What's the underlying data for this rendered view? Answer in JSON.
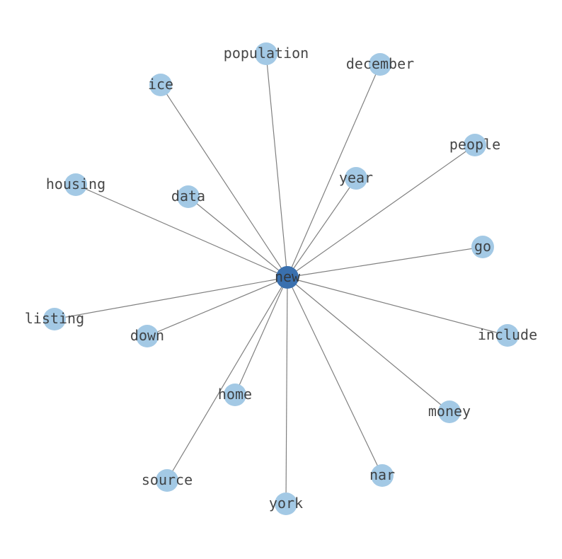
{
  "graph": {
    "center": "new",
    "nodes": [
      "new",
      "population",
      "december",
      "ice",
      "people",
      "year",
      "housing",
      "data",
      "go",
      "listing",
      "down",
      "include",
      "home",
      "money",
      "source",
      "nar",
      "york"
    ],
    "edges": [
      [
        "new",
        "population"
      ],
      [
        "new",
        "december"
      ],
      [
        "new",
        "ice"
      ],
      [
        "new",
        "people"
      ],
      [
        "new",
        "year"
      ],
      [
        "new",
        "housing"
      ],
      [
        "new",
        "data"
      ],
      [
        "new",
        "go"
      ],
      [
        "new",
        "listing"
      ],
      [
        "new",
        "down"
      ],
      [
        "new",
        "include"
      ],
      [
        "new",
        "home"
      ],
      [
        "new",
        "money"
      ],
      [
        "new",
        "source"
      ],
      [
        "new",
        "nar"
      ],
      [
        "new",
        "york"
      ]
    ],
    "colors": {
      "node": "#a3c9e5",
      "center_node": "#3a70ae",
      "edge": "#808080",
      "label": "#333333"
    }
  }
}
